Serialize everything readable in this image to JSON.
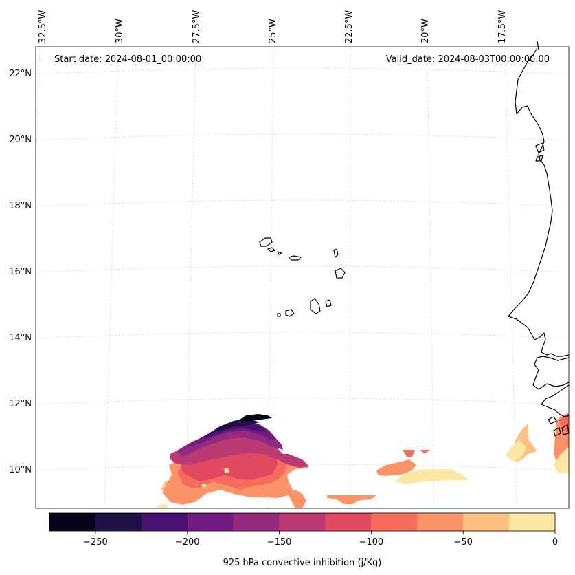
{
  "header": {
    "start_date": "Start date: 2024-08-01_00:00:00",
    "valid_date": "Valid_date: 2024-08-03T00:00:00.00"
  },
  "lon_labels": [
    "32.5°W",
    "30°W",
    "27.5°W",
    "25°W",
    "22.5°W",
    "20°W",
    "17.5°W"
  ],
  "lat_labels": [
    "22°N",
    "20°N",
    "18°N",
    "16°N",
    "14°N",
    "12°N",
    "10°N"
  ],
  "colorbar": {
    "title": "925 hPa convective inhibition (j/Kg)",
    "tick_labels": [
      "−250",
      "−200",
      "−150",
      "−100",
      "−50",
      "0"
    ],
    "levels": [
      -275,
      -250,
      -225,
      -200,
      -175,
      -150,
      -125,
      -100,
      -75,
      -50,
      -25,
      0
    ],
    "colors": [
      "#06051a",
      "#1f1145",
      "#4a0f73",
      "#701c81",
      "#942a7e",
      "#bc3a73",
      "#e0495f",
      "#f56b5c",
      "#fc9467",
      "#fec182",
      "#fde7a4"
    ]
  },
  "colors": {
    "coastline": "#000000",
    "grid": "#dddddd",
    "frame": "#000000"
  }
}
